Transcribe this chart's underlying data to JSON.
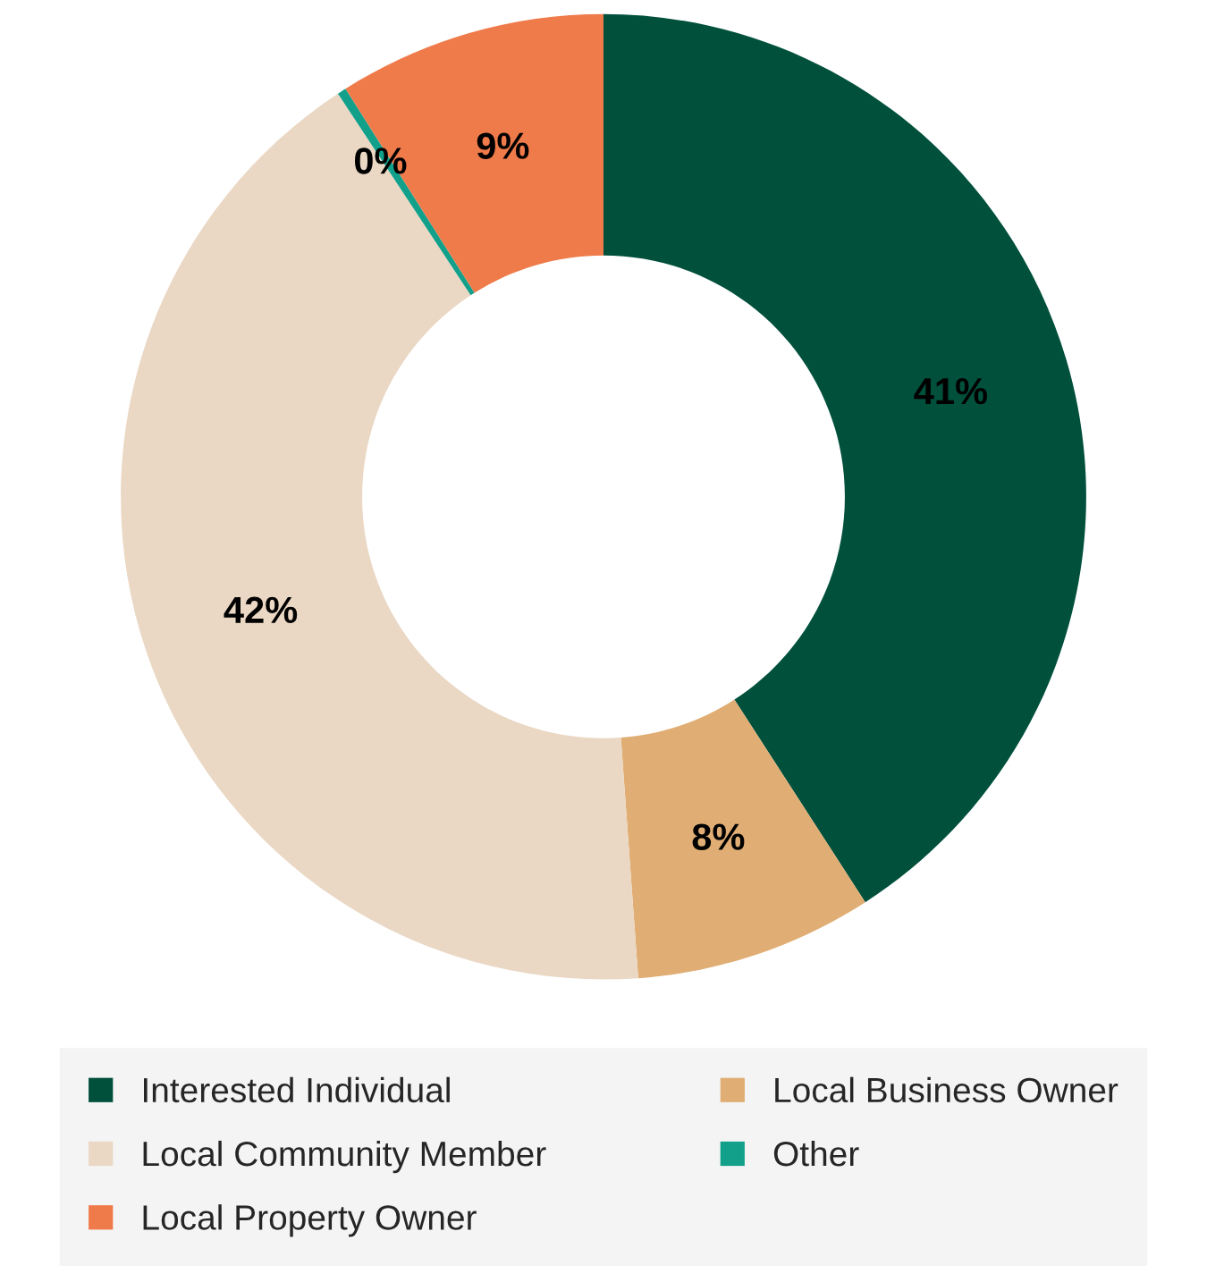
{
  "chart_data": {
    "type": "donut",
    "categories": [
      "Interested Individual",
      "Local Business Owner",
      "Local Community Member",
      "Other",
      "Local Property Owner"
    ],
    "values": [
      41,
      8,
      42,
      0.3,
      9
    ],
    "value_labels": [
      "41%",
      "8%",
      "42%",
      "0%",
      "9%"
    ],
    "colors": [
      "#00503c",
      "#e0ae74",
      "#ead8c4",
      "#13a08a",
      "#ef7a4a"
    ],
    "legend": "bottom"
  }
}
